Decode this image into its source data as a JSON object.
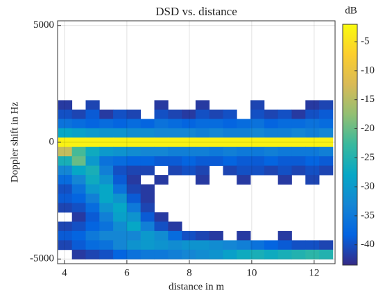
{
  "chart_data": {
    "type": "heatmap",
    "title": "DSD vs. distance",
    "x_label": "distance in m",
    "y_label": "Doppler shift in Hz",
    "colorbar_label": "dB",
    "x": [
      4.02,
      4.46,
      4.9,
      5.34,
      5.78,
      6.22,
      6.66,
      7.1,
      7.54,
      7.98,
      8.42,
      8.86,
      9.3,
      9.74,
      10.18,
      10.62,
      11.06,
      11.5,
      11.94,
      12.38
    ],
    "y": [
      4800,
      4400,
      4000,
      3600,
      3200,
      2800,
      2400,
      2000,
      1600,
      1200,
      800,
      400,
      0,
      -400,
      -800,
      -1200,
      -1600,
      -2000,
      -2400,
      -2800,
      -3200,
      -3600,
      -4000,
      -4400,
      -4800
    ],
    "z": [
      [
        null,
        null,
        null,
        null,
        null,
        null,
        null,
        null,
        null,
        null,
        null,
        null,
        null,
        null,
        null,
        null,
        null,
        null,
        null,
        null
      ],
      [
        null,
        null,
        null,
        null,
        null,
        null,
        null,
        null,
        null,
        null,
        null,
        null,
        null,
        null,
        null,
        null,
        null,
        null,
        null,
        null
      ],
      [
        null,
        null,
        null,
        null,
        null,
        null,
        null,
        null,
        null,
        null,
        null,
        null,
        null,
        null,
        null,
        null,
        null,
        null,
        null,
        null
      ],
      [
        null,
        null,
        null,
        null,
        null,
        null,
        null,
        null,
        null,
        null,
        null,
        null,
        null,
        null,
        null,
        null,
        null,
        null,
        null,
        null
      ],
      [
        null,
        null,
        null,
        null,
        null,
        null,
        null,
        null,
        null,
        null,
        null,
        null,
        null,
        null,
        null,
        null,
        null,
        null,
        null,
        null
      ],
      [
        null,
        null,
        null,
        null,
        null,
        null,
        null,
        null,
        null,
        null,
        null,
        null,
        null,
        null,
        null,
        null,
        null,
        null,
        null,
        null
      ],
      [
        null,
        null,
        null,
        null,
        null,
        null,
        null,
        null,
        null,
        null,
        null,
        null,
        null,
        null,
        null,
        null,
        null,
        null,
        null,
        null
      ],
      [
        null,
        null,
        null,
        null,
        null,
        null,
        null,
        null,
        null,
        null,
        null,
        null,
        null,
        null,
        null,
        null,
        null,
        null,
        null,
        null
      ],
      [
        -42,
        null,
        -41,
        null,
        null,
        null,
        null,
        -42,
        null,
        null,
        -42,
        null,
        null,
        null,
        -41,
        null,
        null,
        null,
        -42,
        -41
      ],
      [
        -40,
        -41,
        -39,
        -42,
        -40,
        -41,
        null,
        -40,
        -41,
        -42,
        -40,
        -41,
        -40,
        null,
        -40,
        -41,
        -40,
        -42,
        -40,
        -39
      ],
      [
        -36,
        -37,
        -38,
        -37,
        -38,
        -37,
        -38,
        -36,
        -37,
        -38,
        -37,
        -37,
        -38,
        -37,
        -36,
        -38,
        -37,
        -37,
        -36,
        -37
      ],
      [
        -28,
        -29,
        -30,
        -31,
        -31,
        -32,
        -32,
        -33,
        -33,
        -33,
        -34,
        -33,
        -34,
        -34,
        -33,
        -34,
        -34,
        -33,
        -34,
        -33
      ],
      [
        -3,
        -3,
        -3,
        -3,
        -3,
        -3,
        -3,
        -3,
        -3,
        -3,
        -3,
        -3,
        -3,
        -3,
        -3,
        -3,
        -3,
        -3,
        -3,
        -3
      ],
      [
        -14,
        -22,
        -27,
        -30,
        -31,
        -32,
        -33,
        -33,
        -34,
        -34,
        -34,
        -35,
        -34,
        -35,
        -35,
        -34,
        -35,
        -35,
        -35,
        -34
      ],
      [
        -26,
        -20,
        -30,
        -36,
        -37,
        -38,
        -38,
        -39,
        -39,
        -38,
        -39,
        -39,
        -38,
        -39,
        -39,
        -38,
        -39,
        -39,
        -38,
        -39
      ],
      [
        -33,
        -28,
        -26,
        -34,
        -40,
        -41,
        -41,
        null,
        -41,
        -40,
        -41,
        null,
        -41,
        -40,
        -40,
        -41,
        -40,
        -41,
        -40,
        -41
      ],
      [
        -37,
        -33,
        -27,
        -31,
        -39,
        -42,
        null,
        -42,
        null,
        null,
        -42,
        null,
        null,
        -42,
        null,
        null,
        -42,
        null,
        -41,
        null
      ],
      [
        -40,
        -36,
        -30,
        -28,
        -36,
        -41,
        -42,
        null,
        null,
        null,
        null,
        null,
        null,
        null,
        null,
        null,
        null,
        null,
        null,
        null
      ],
      [
        -39,
        -38,
        -34,
        -28,
        -31,
        -39,
        -42,
        null,
        null,
        null,
        null,
        null,
        null,
        null,
        null,
        null,
        null,
        null,
        null,
        null
      ],
      [
        -41,
        -40,
        -37,
        -31,
        -28,
        -35,
        -41,
        null,
        null,
        null,
        null,
        null,
        null,
        null,
        null,
        null,
        null,
        null,
        null,
        null
      ],
      [
        null,
        -42,
        -39,
        -34,
        -29,
        -31,
        -39,
        -42,
        null,
        null,
        null,
        null,
        null,
        null,
        null,
        null,
        null,
        null,
        null,
        null
      ],
      [
        -41,
        -40,
        -38,
        -36,
        -32,
        -28,
        -34,
        -40,
        -42,
        null,
        null,
        null,
        null,
        null,
        null,
        null,
        null,
        null,
        null,
        null
      ],
      [
        -39,
        -38,
        -35,
        -33,
        -33,
        -33,
        -30,
        -32,
        -37,
        -40,
        -41,
        -42,
        null,
        -42,
        null,
        null,
        -42,
        null,
        null,
        null
      ],
      [
        -41,
        -39,
        -37,
        -36,
        -33,
        -31,
        -30,
        -31,
        -32,
        -31,
        -31,
        -32,
        -33,
        -34,
        -36,
        -38,
        -39,
        -40,
        -40,
        -41
      ],
      [
        null,
        -42,
        -41,
        -40,
        -38,
        -36,
        -35,
        -35,
        -34,
        -33,
        -32,
        -31,
        -29,
        -27,
        -26,
        -27,
        -26,
        -25,
        -24,
        -25
      ]
    ],
    "xlim": [
      3.78,
      12.67
    ],
    "xticks": [
      4,
      6,
      8,
      10,
      12
    ],
    "ylim": [
      -5200,
      5200
    ],
    "yticks": [
      -5000,
      0,
      5000
    ],
    "clim": [
      -43.5,
      -2
    ],
    "cticks": [
      -40,
      -35,
      -30,
      -25,
      -20,
      -15,
      -10,
      -5
    ],
    "colorscale": [
      "#352a87",
      "#0363e1",
      "#1485d4",
      "#06a7c6",
      "#38b99e",
      "#92bf73",
      "#d9ba56",
      "#fcce2e",
      "#f9fb0e"
    ],
    "grid": true
  }
}
